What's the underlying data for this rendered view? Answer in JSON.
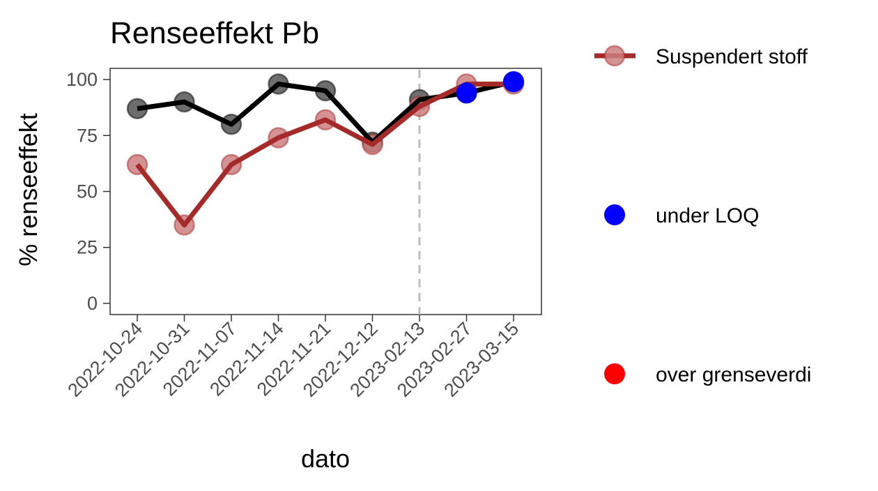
{
  "chart_data": {
    "type": "line",
    "title": "Renseeffekt Pb",
    "xlabel": "dato",
    "ylabel": "% renseeffekt",
    "categories": [
      "2022-10-24",
      "2022-10-31",
      "2022-11-07",
      "2022-11-14",
      "2022-11-21",
      "2022-12-12",
      "2023-02-13",
      "2023-02-27",
      "2023-03-15"
    ],
    "ylim": [
      -5,
      105
    ],
    "yticks": [
      0,
      25,
      50,
      75,
      100
    ],
    "grid": false,
    "legend_position": "right",
    "reference_line": {
      "x": "2023-02-13",
      "style": "dashed",
      "color": "#bdbdbd"
    },
    "series": [
      {
        "key": "black",
        "color": "#000000",
        "point_color": "#555555",
        "values": [
          87,
          90,
          80,
          98,
          95,
          72,
          91,
          94,
          99
        ]
      },
      {
        "key": "ss",
        "name": "Suspendert stoff",
        "color": "#a52a2a",
        "point_color": "#cd7f7f",
        "values": [
          62,
          35,
          62,
          74,
          82,
          71,
          88,
          98,
          98
        ]
      }
    ],
    "markers": {
      "under_loq": {
        "label": "under LOQ",
        "color": "#0000ff",
        "points": [
          {
            "x": "2023-02-27",
            "y": 94
          },
          {
            "x": "2023-03-15",
            "y": 99
          }
        ]
      },
      "over_limit": {
        "label": "over grenseverdi",
        "color": "#ff0000",
        "points": []
      }
    },
    "legend": [
      {
        "label": "Suspendert stoff",
        "symbol": "line-point",
        "color": "#a52a2a"
      },
      {
        "label": "under LOQ",
        "symbol": "point",
        "color": "#0000ff"
      },
      {
        "label": "over grenseverdi",
        "symbol": "point",
        "color": "#ff0000"
      }
    ]
  }
}
